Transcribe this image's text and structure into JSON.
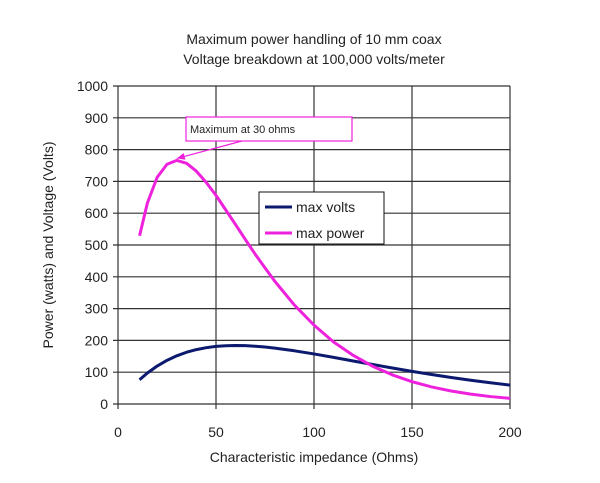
{
  "chart_data": {
    "type": "line",
    "title": "Maximum power handling of 10 mm coax",
    "subtitle": "Voltage breakdown at 100,000 volts/meter",
    "xlabel": "Characteristic impedance (Ohms)",
    "ylabel": "Power (watts) and Voltage (Volts)",
    "xlim": [
      0,
      200
    ],
    "ylim": [
      0,
      1000
    ],
    "xticks": [
      0,
      50,
      100,
      150,
      200
    ],
    "yticks": [
      0,
      100,
      200,
      300,
      400,
      500,
      600,
      700,
      800,
      900,
      1000
    ],
    "grid": true,
    "legend_placement": "center",
    "x": [
      11,
      15,
      20,
      25,
      30,
      35,
      40,
      45,
      50,
      55,
      60,
      65,
      70,
      75,
      80,
      90,
      100,
      110,
      120,
      130,
      140,
      150,
      160,
      170,
      180,
      190,
      200
    ],
    "series": [
      {
        "name": "max volts",
        "color": "#0b1a6e",
        "values": [
          76.3,
          97.4,
          119.4,
          137.3,
          151.6,
          162.8,
          171.1,
          177.1,
          181.1,
          183.2,
          183.9,
          183.4,
          181.6,
          179.1,
          175.7,
          167.3,
          157.4,
          146.6,
          135.3,
          124.1,
          113.2,
          102.6,
          92.7,
          83.4,
          74.7,
          66.7,
          59.5
        ]
      },
      {
        "name": "max power",
        "color": "#ee22dd",
        "values": [
          529,
          632,
          713,
          754,
          766,
          757,
          732,
          697,
          656,
          610,
          564,
          517,
          471,
          428,
          386,
          311,
          248,
          195,
          153,
          118.5,
          91.5,
          70.2,
          53.7,
          40.9,
          31.0,
          23.4,
          17.7
        ]
      }
    ],
    "annotation": {
      "text": "Maximum at 30 ohms",
      "x": 30,
      "y": 766,
      "color": "#ee22dd"
    }
  }
}
